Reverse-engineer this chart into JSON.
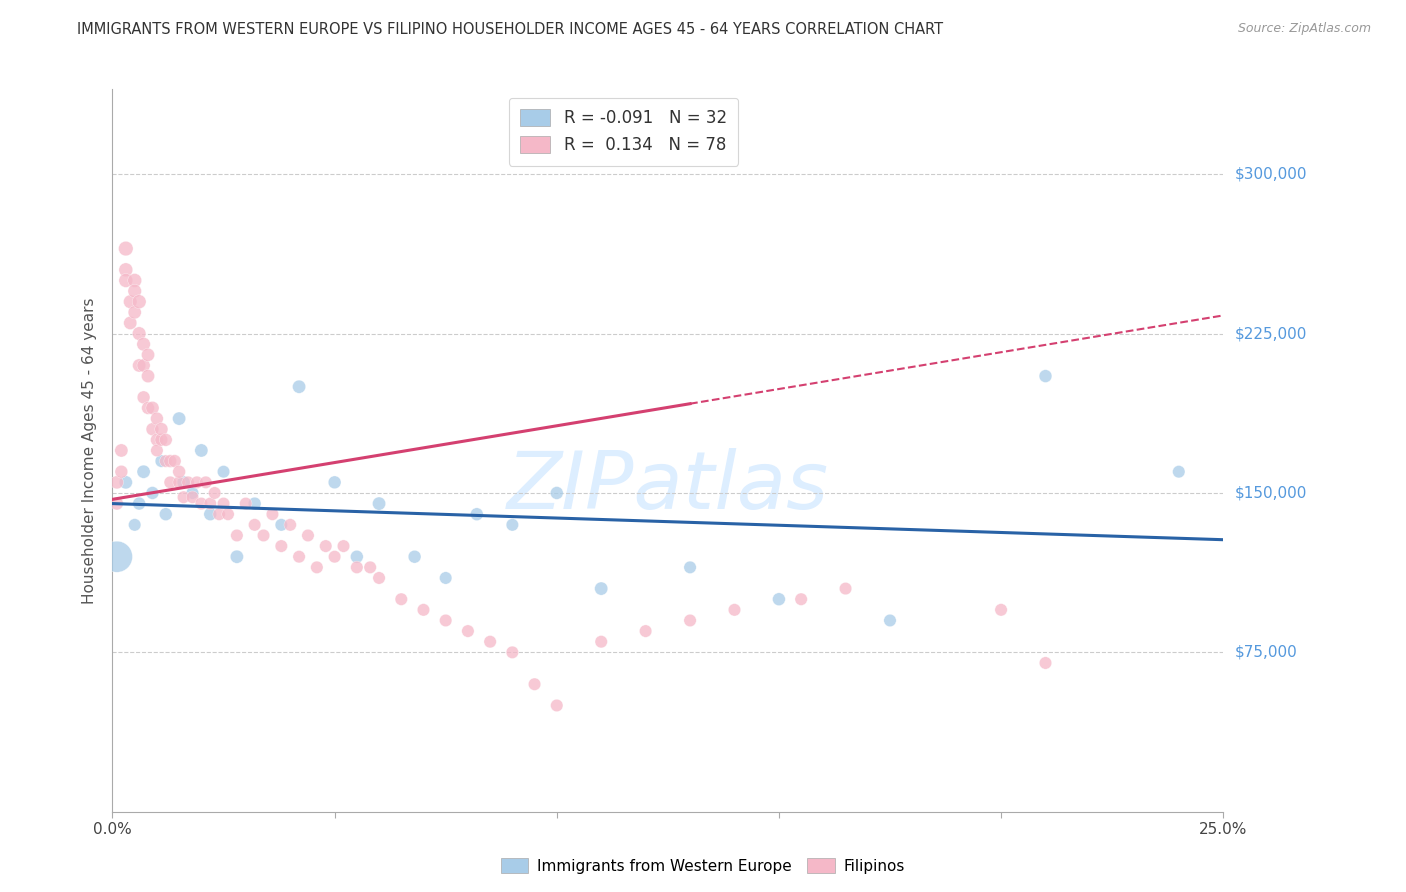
{
  "title": "IMMIGRANTS FROM WESTERN EUROPE VS FILIPINO HOUSEHOLDER INCOME AGES 45 - 64 YEARS CORRELATION CHART",
  "source": "Source: ZipAtlas.com",
  "ylabel": "Householder Income Ages 45 - 64 years",
  "xlim": [
    0.0,
    0.25
  ],
  "ylim": [
    0,
    340000
  ],
  "yticks": [
    75000,
    150000,
    225000,
    300000
  ],
  "ytick_labels": [
    "$75,000",
    "$150,000",
    "$225,000",
    "$300,000"
  ],
  "xticks": [
    0.0,
    0.05,
    0.1,
    0.15,
    0.2,
    0.25
  ],
  "xtick_labels": [
    "0.0%",
    "",
    "",
    "",
    "",
    "25.0%"
  ],
  "legend_label1": "Immigrants from Western Europe",
  "legend_label2": "Filipinos",
  "blue_color": "#a8cce8",
  "pink_color": "#f5b8c8",
  "blue_line_color": "#2962a6",
  "pink_line_color": "#d44070",
  "grid_color": "#cccccc",
  "title_color": "#333333",
  "right_label_color": "#5599dd",
  "watermark_color": "#ddeeff",
  "blue_R": -0.091,
  "blue_N": 32,
  "pink_R": 0.134,
  "pink_N": 78,
  "blue_line_y0": 145000,
  "blue_line_y1": 128000,
  "pink_line_y0": 147000,
  "pink_line_y1_solid": 192000,
  "pink_line_x1_solid": 0.13,
  "pink_line_y1_dash": 235000,
  "blue_scatter_x": [
    0.001,
    0.003,
    0.005,
    0.006,
    0.007,
    0.009,
    0.011,
    0.012,
    0.015,
    0.016,
    0.018,
    0.02,
    0.022,
    0.025,
    0.028,
    0.032,
    0.038,
    0.042,
    0.05,
    0.055,
    0.06,
    0.068,
    0.075,
    0.082,
    0.09,
    0.1,
    0.11,
    0.13,
    0.15,
    0.175,
    0.21,
    0.24
  ],
  "blue_scatter_y": [
    120000,
    155000,
    135000,
    145000,
    160000,
    150000,
    165000,
    140000,
    185000,
    155000,
    150000,
    170000,
    140000,
    160000,
    120000,
    145000,
    135000,
    200000,
    155000,
    120000,
    145000,
    120000,
    110000,
    140000,
    135000,
    150000,
    105000,
    115000,
    100000,
    90000,
    205000,
    160000
  ],
  "blue_scatter_sizes": [
    500,
    90,
    80,
    85,
    90,
    85,
    80,
    85,
    90,
    85,
    80,
    90,
    85,
    80,
    90,
    85,
    80,
    90,
    85,
    85,
    90,
    85,
    80,
    85,
    80,
    85,
    90,
    80,
    85,
    80,
    85,
    80
  ],
  "pink_scatter_x": [
    0.001,
    0.001,
    0.002,
    0.002,
    0.003,
    0.003,
    0.003,
    0.004,
    0.004,
    0.005,
    0.005,
    0.005,
    0.006,
    0.006,
    0.006,
    0.007,
    0.007,
    0.007,
    0.008,
    0.008,
    0.008,
    0.009,
    0.009,
    0.01,
    0.01,
    0.01,
    0.011,
    0.011,
    0.012,
    0.012,
    0.013,
    0.013,
    0.014,
    0.015,
    0.015,
    0.016,
    0.017,
    0.018,
    0.019,
    0.02,
    0.021,
    0.022,
    0.023,
    0.024,
    0.025,
    0.026,
    0.028,
    0.03,
    0.032,
    0.034,
    0.036,
    0.038,
    0.04,
    0.042,
    0.044,
    0.046,
    0.048,
    0.05,
    0.052,
    0.055,
    0.058,
    0.06,
    0.065,
    0.07,
    0.075,
    0.08,
    0.085,
    0.09,
    0.095,
    0.1,
    0.11,
    0.12,
    0.13,
    0.14,
    0.155,
    0.165,
    0.2,
    0.21
  ],
  "pink_scatter_y": [
    155000,
    145000,
    170000,
    160000,
    255000,
    265000,
    250000,
    240000,
    230000,
    250000,
    245000,
    235000,
    225000,
    240000,
    210000,
    210000,
    220000,
    195000,
    215000,
    190000,
    205000,
    180000,
    190000,
    185000,
    175000,
    170000,
    175000,
    180000,
    175000,
    165000,
    165000,
    155000,
    165000,
    155000,
    160000,
    148000,
    155000,
    148000,
    155000,
    145000,
    155000,
    145000,
    150000,
    140000,
    145000,
    140000,
    130000,
    145000,
    135000,
    130000,
    140000,
    125000,
    135000,
    120000,
    130000,
    115000,
    125000,
    120000,
    125000,
    115000,
    115000,
    110000,
    100000,
    95000,
    90000,
    85000,
    80000,
    75000,
    60000,
    50000,
    80000,
    85000,
    90000,
    95000,
    100000,
    105000,
    95000,
    70000
  ],
  "pink_scatter_sizes": [
    90,
    85,
    90,
    85,
    100,
    110,
    100,
    95,
    90,
    100,
    95,
    90,
    95,
    100,
    90,
    90,
    95,
    85,
    90,
    85,
    90,
    85,
    90,
    85,
    85,
    80,
    85,
    90,
    85,
    80,
    85,
    80,
    85,
    80,
    85,
    80,
    80,
    80,
    80,
    80,
    80,
    80,
    80,
    80,
    80,
    80,
    80,
    80,
    80,
    80,
    80,
    80,
    80,
    80,
    80,
    80,
    80,
    80,
    80,
    80,
    80,
    80,
    80,
    80,
    80,
    80,
    80,
    80,
    80,
    80,
    80,
    80,
    80,
    80,
    80,
    80,
    80,
    80
  ]
}
